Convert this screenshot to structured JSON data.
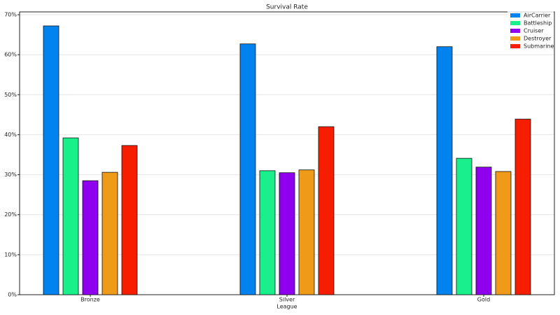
{
  "chart_data": {
    "type": "bar",
    "title": "Survival Rate",
    "x_label": "League",
    "categories": [
      "Bronze",
      "Silver",
      "Gold"
    ],
    "series": [
      {
        "name": "AirCarrier",
        "color": "#0083ee",
        "values": [
          67.2,
          62.7,
          62.0
        ]
      },
      {
        "name": "Battleship",
        "color": "#19ef8a",
        "values": [
          39.2,
          31.0,
          34.1
        ]
      },
      {
        "name": "Cruiser",
        "color": "#8f00ef",
        "values": [
          28.5,
          30.5,
          31.9
        ]
      },
      {
        "name": "Destroyer",
        "color": "#f09a1a",
        "values": [
          30.6,
          31.2,
          30.8
        ]
      },
      {
        "name": "Submarine",
        "color": "#f71e00",
        "values": [
          37.3,
          42.0,
          43.9
        ]
      }
    ],
    "ylim": [
      0,
      70
    ],
    "yticks": [
      {
        "value": 0,
        "label": "0%"
      },
      {
        "value": 10,
        "label": "10%"
      },
      {
        "value": 20,
        "label": "20%"
      },
      {
        "value": 30,
        "label": "30%"
      },
      {
        "value": 40,
        "label": "40%"
      },
      {
        "value": 50,
        "label": "50%"
      },
      {
        "value": 60,
        "label": "60%"
      },
      {
        "value": 70,
        "label": "70%"
      }
    ],
    "grid": true,
    "legend": "upper right"
  }
}
